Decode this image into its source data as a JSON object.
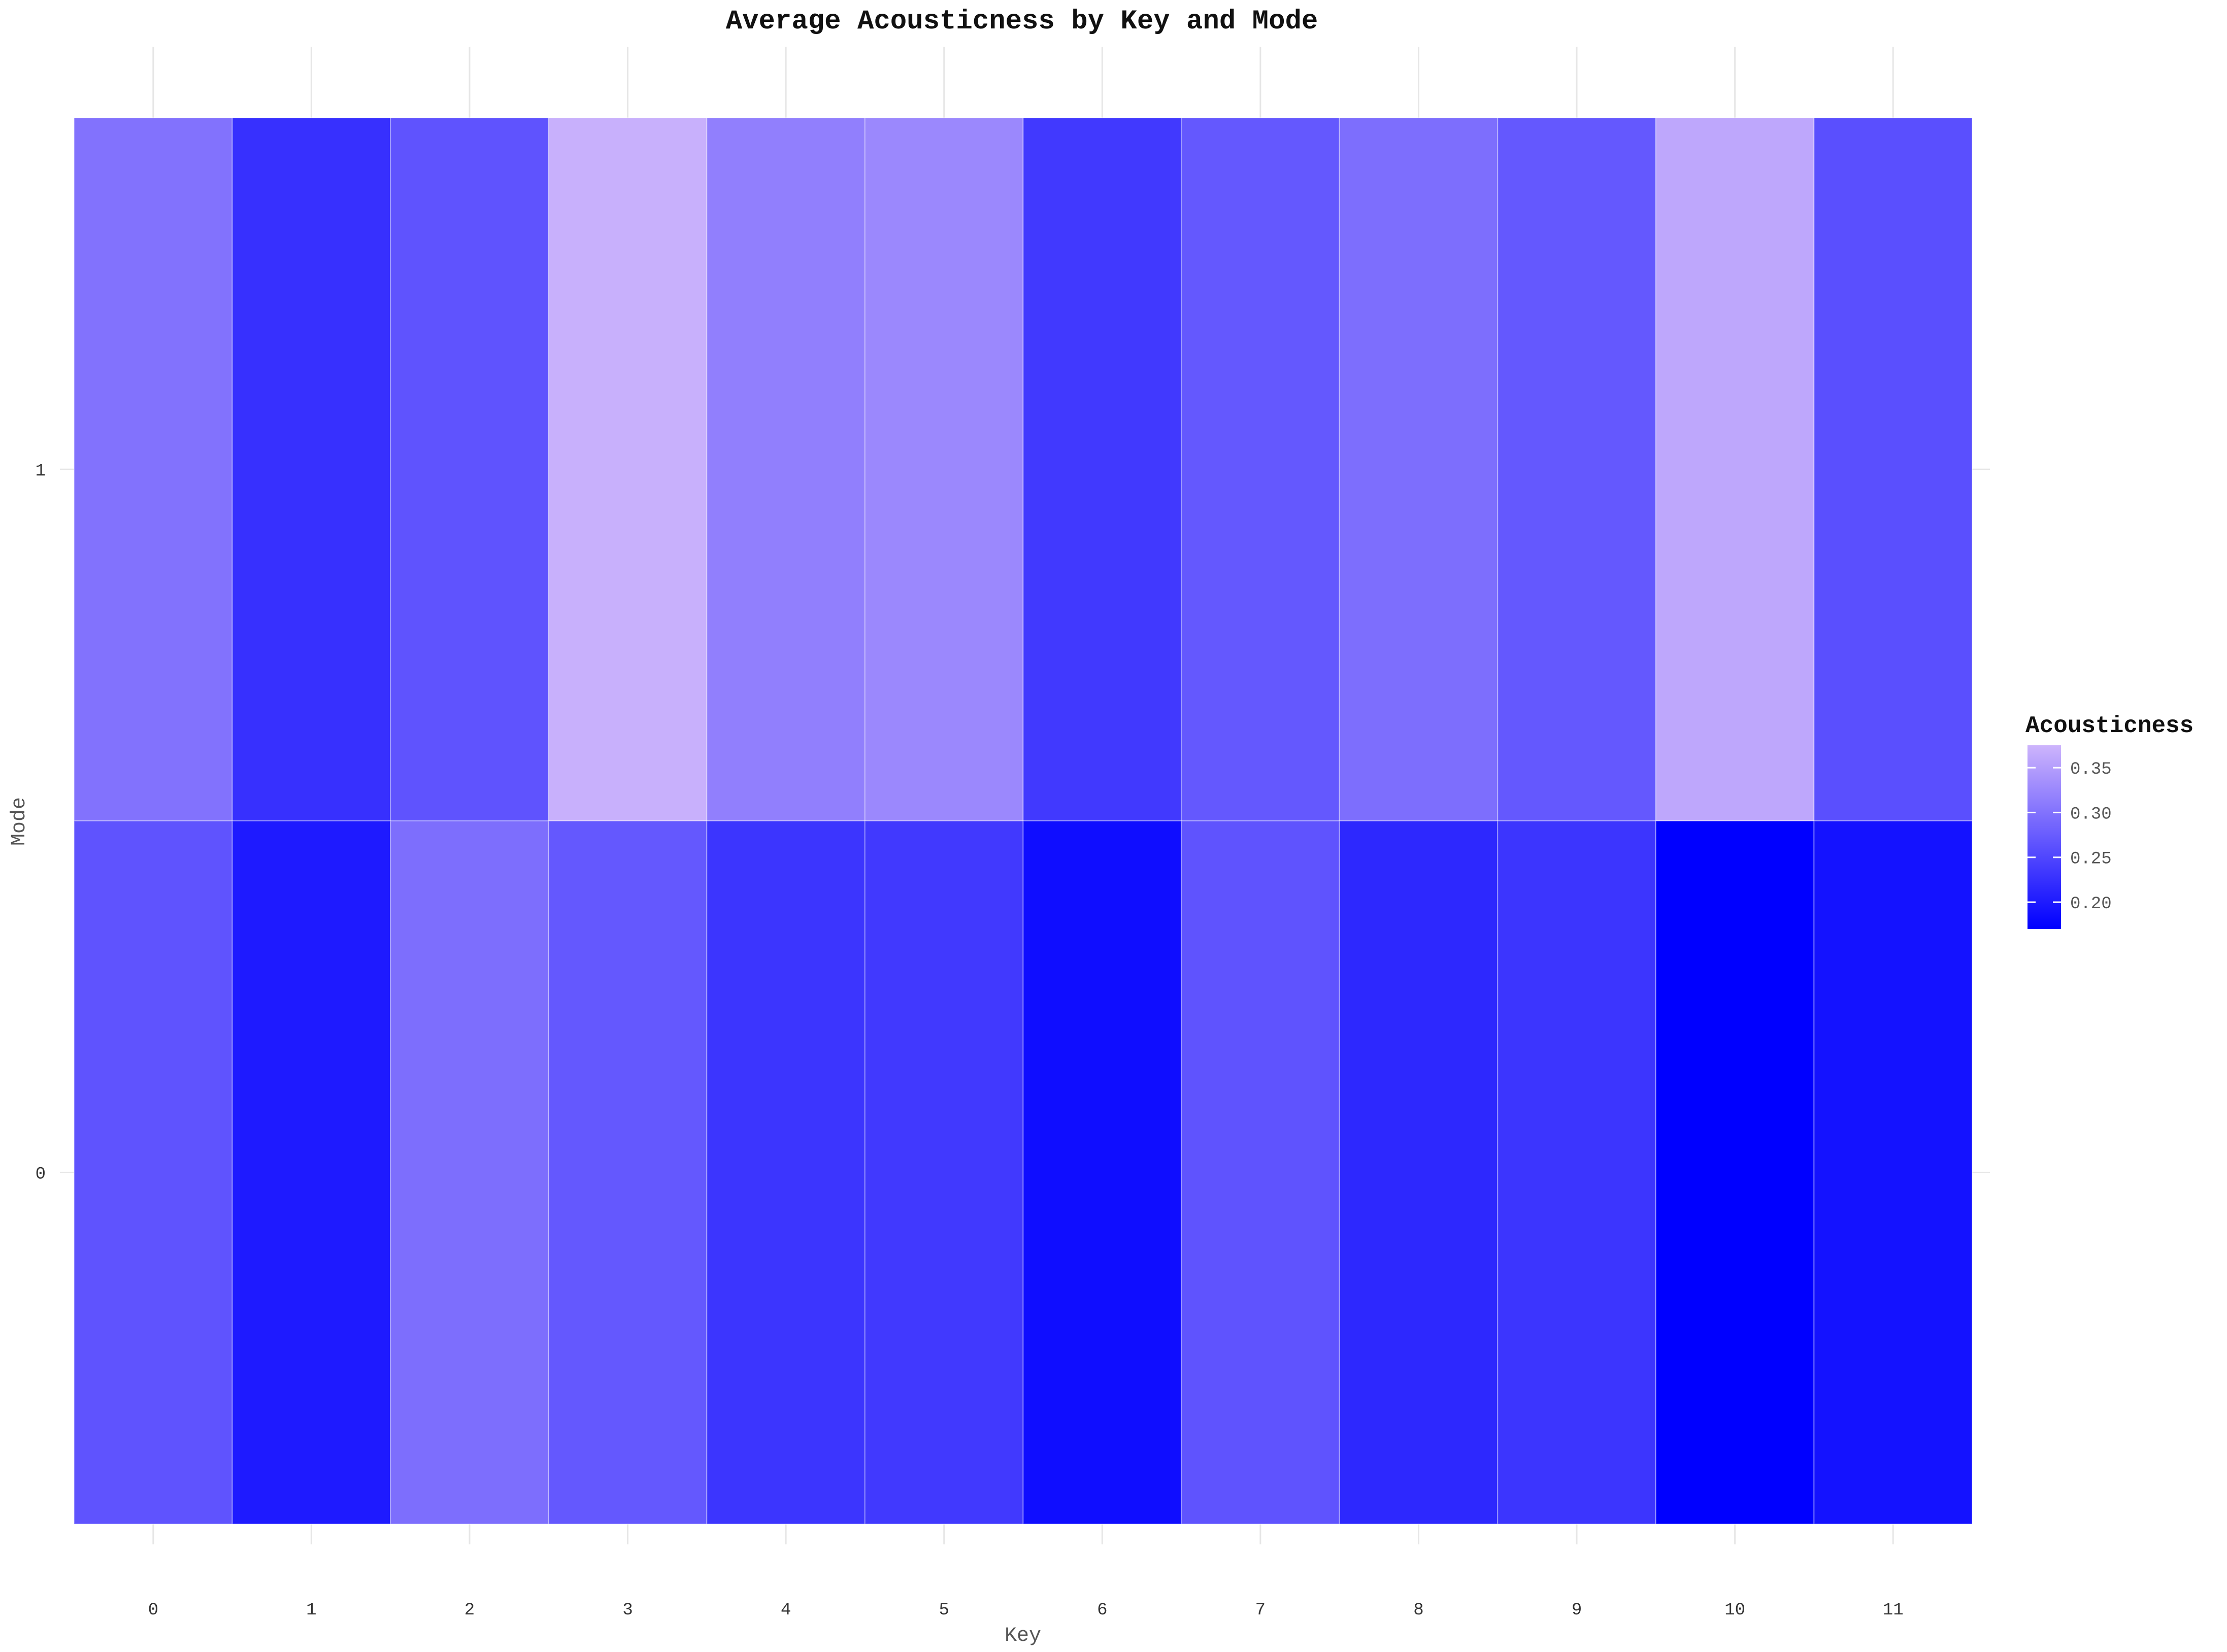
{
  "chart_data": {
    "type": "heatmap",
    "title": "Average Acousticness by Key and Mode",
    "xlabel": "Key",
    "ylabel": "Mode",
    "x_categories": [
      "0",
      "1",
      "2",
      "3",
      "4",
      "5",
      "6",
      "7",
      "8",
      "9",
      "10",
      "11"
    ],
    "y_categories": [
      "0",
      "1"
    ],
    "grid": true,
    "values": {
      "mode_1": [
        0.3,
        0.225,
        0.265,
        0.37,
        0.315,
        0.325,
        0.235,
        0.27,
        0.295,
        0.27,
        0.36,
        0.26
      ],
      "mode_0": [
        0.265,
        0.2,
        0.295,
        0.27,
        0.23,
        0.235,
        0.185,
        0.265,
        0.215,
        0.23,
        0.17,
        0.19
      ]
    },
    "color_scale": {
      "low_color": "#0000ff",
      "high_color": "#cdb4fc",
      "domain": [
        0.17,
        0.375
      ]
    },
    "legend": {
      "title": "Acousticness",
      "placement": "right",
      "ticks": [
        "0.35",
        "0.30",
        "0.25",
        "0.20"
      ],
      "tick_values": [
        0.35,
        0.3,
        0.25,
        0.2
      ]
    }
  }
}
